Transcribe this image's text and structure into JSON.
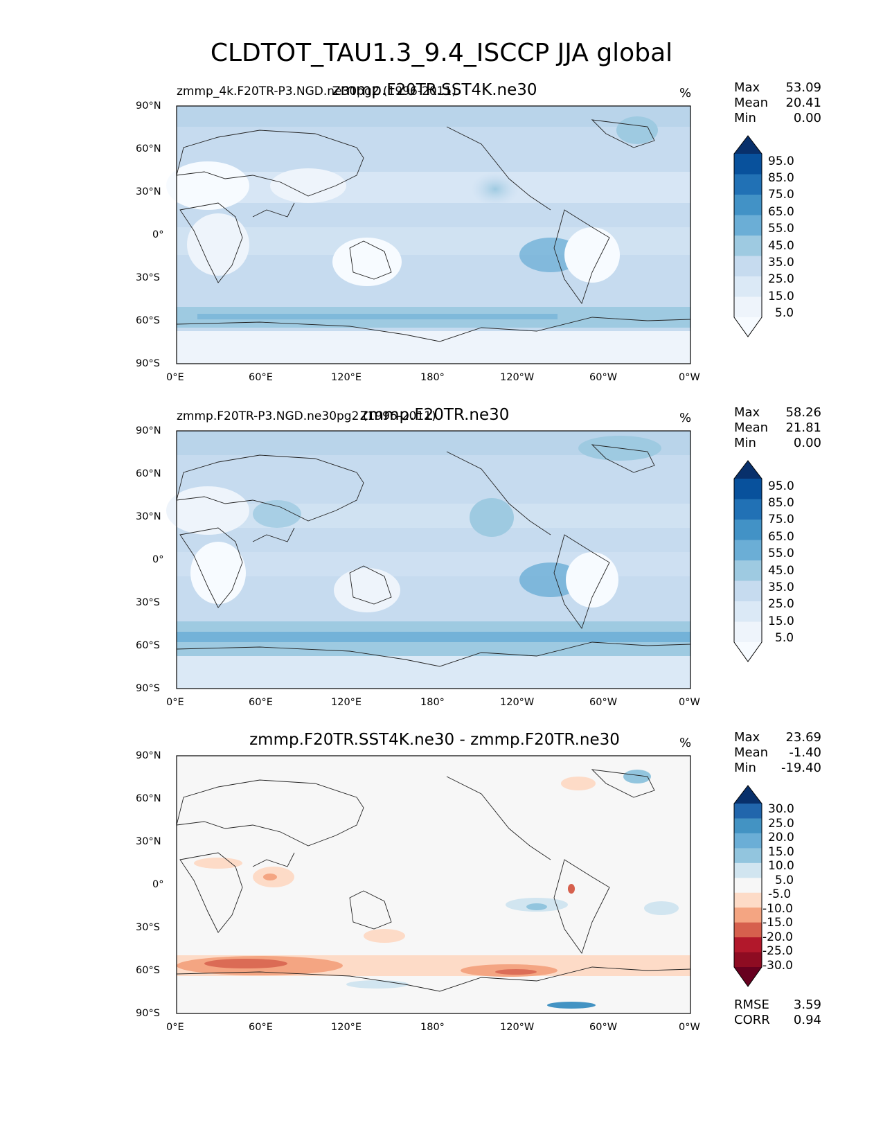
{
  "figure_title": "CLDTOT_TAU1.3_9.4_ISCCP JJA global",
  "chart_data": [
    {
      "type": "heatmap",
      "panel_title": "zmmp.F20TR.SST4K.ne30",
      "left_title": "zmmp_4k.F20TR-P3.NGD.ne30pg2 (1996-2011)",
      "units": "%",
      "stats": {
        "max_label": "Max",
        "max": "53.09",
        "mean_label": "Mean",
        "mean": "20.41",
        "min_label": "Min",
        "min": "0.00"
      },
      "lon_ticks": [
        "0°E",
        "60°E",
        "120°E",
        "180°",
        "120°W",
        "60°W",
        "0°W"
      ],
      "lat_ticks": [
        "90°N",
        "60°N",
        "30°N",
        "0°",
        "30°S",
        "60°S",
        "90°S"
      ],
      "colorbar": {
        "labels": [
          "95.0",
          "85.0",
          "75.0",
          "65.0",
          "55.0",
          "45.0",
          "35.0",
          "25.0",
          "15.0",
          "5.0"
        ],
        "colors": [
          "#08306b",
          "#08519c",
          "#2171b5",
          "#4292c6",
          "#6baed6",
          "#9ecae1",
          "#c6dbef",
          "#dbe9f6",
          "#eef4fb",
          "#f7fbff"
        ]
      }
    },
    {
      "type": "heatmap",
      "panel_title": "zmmp.F20TR.ne30",
      "left_title": "zmmp.F20TR-P3.NGD.ne30pg2 (1996-2011)",
      "units": "%",
      "stats": {
        "max_label": "Max",
        "max": "58.26",
        "mean_label": "Mean",
        "mean": "21.81",
        "min_label": "Min",
        "min": "0.00"
      },
      "lon_ticks": [
        "0°E",
        "60°E",
        "120°E",
        "180°",
        "120°W",
        "60°W",
        "0°W"
      ],
      "lat_ticks": [
        "90°N",
        "60°N",
        "30°N",
        "0°",
        "30°S",
        "60°S",
        "90°S"
      ],
      "colorbar": {
        "labels": [
          "95.0",
          "85.0",
          "75.0",
          "65.0",
          "55.0",
          "45.0",
          "35.0",
          "25.0",
          "15.0",
          "5.0"
        ],
        "colors": [
          "#08306b",
          "#08519c",
          "#2171b5",
          "#4292c6",
          "#6baed6",
          "#9ecae1",
          "#c6dbef",
          "#dbe9f6",
          "#eef4fb",
          "#f7fbff"
        ]
      }
    },
    {
      "type": "heatmap",
      "panel_title": "zmmp.F20TR.SST4K.ne30 - zmmp.F20TR.ne30",
      "units": "%",
      "stats": {
        "max_label": "Max",
        "max": "23.69",
        "mean_label": "Mean",
        "mean": "-1.40",
        "min_label": "Min",
        "min": "-19.40"
      },
      "lon_ticks": [
        "0°E",
        "60°E",
        "120°E",
        "180°",
        "120°W",
        "60°W",
        "0°W"
      ],
      "lat_ticks": [
        "90°N",
        "60°N",
        "30°N",
        "0°",
        "30°S",
        "60°S",
        "90°S"
      ],
      "colorbar": {
        "labels": [
          "30.0",
          "25.0",
          "20.0",
          "15.0",
          "10.0",
          "5.0",
          "-5.0",
          "-10.0",
          "-15.0",
          "-20.0",
          "-25.0",
          "-30.0"
        ],
        "colors": [
          "#08306b",
          "#2166ac",
          "#4393c3",
          "#6baed6",
          "#92c5de",
          "#d1e5f0",
          "#f7f7f7",
          "#fddbc7",
          "#f4a582",
          "#d6604d",
          "#b2182b",
          "#8e0c22",
          "#67001f"
        ]
      },
      "metrics": {
        "rmse_label": "RMSE",
        "rmse": "3.59",
        "corr_label": "CORR",
        "corr": "0.94"
      }
    }
  ]
}
